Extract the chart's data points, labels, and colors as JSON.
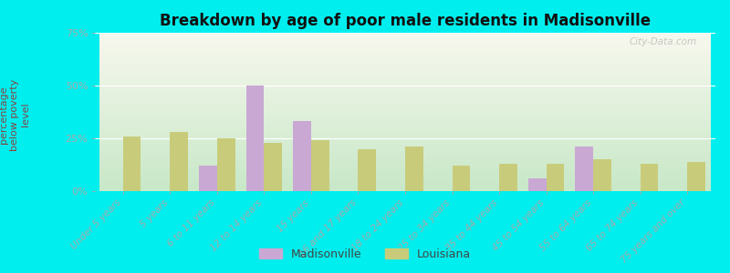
{
  "title": "Breakdown by age of poor male residents in Madisonville",
  "ylabel": "percentage\nbelow poverty\nlevel",
  "categories": [
    "Under 5 years",
    "5 years",
    "6 to 11 years",
    "12 to 14 years",
    "15 years",
    "16 and 17 years",
    "18 to 24 years",
    "25 to 34 years",
    "35 to 44 years",
    "45 to 54 years",
    "55 to 64 years",
    "65 to 74 years",
    "75 years and over"
  ],
  "madisonville": [
    0,
    0,
    12,
    50,
    33,
    0,
    0,
    0,
    0,
    6,
    21,
    0,
    0
  ],
  "louisiana": [
    26,
    28,
    25,
    23,
    24,
    20,
    21,
    12,
    13,
    13,
    15,
    13,
    14
  ],
  "madisonville_color": "#c9a8d4",
  "louisiana_color": "#c8cc7a",
  "bg_top_color": "#f8f8ee",
  "bg_bottom_color": "#c8e8c8",
  "bg_outer": "#00eeee",
  "ylim": [
    0,
    75
  ],
  "yticks": [
    0,
    25,
    50,
    75
  ],
  "ytick_labels": [
    "0%",
    "25%",
    "50%",
    "75%"
  ],
  "bar_width": 0.38,
  "legend_items": [
    "Madisonville",
    "Louisiana"
  ]
}
